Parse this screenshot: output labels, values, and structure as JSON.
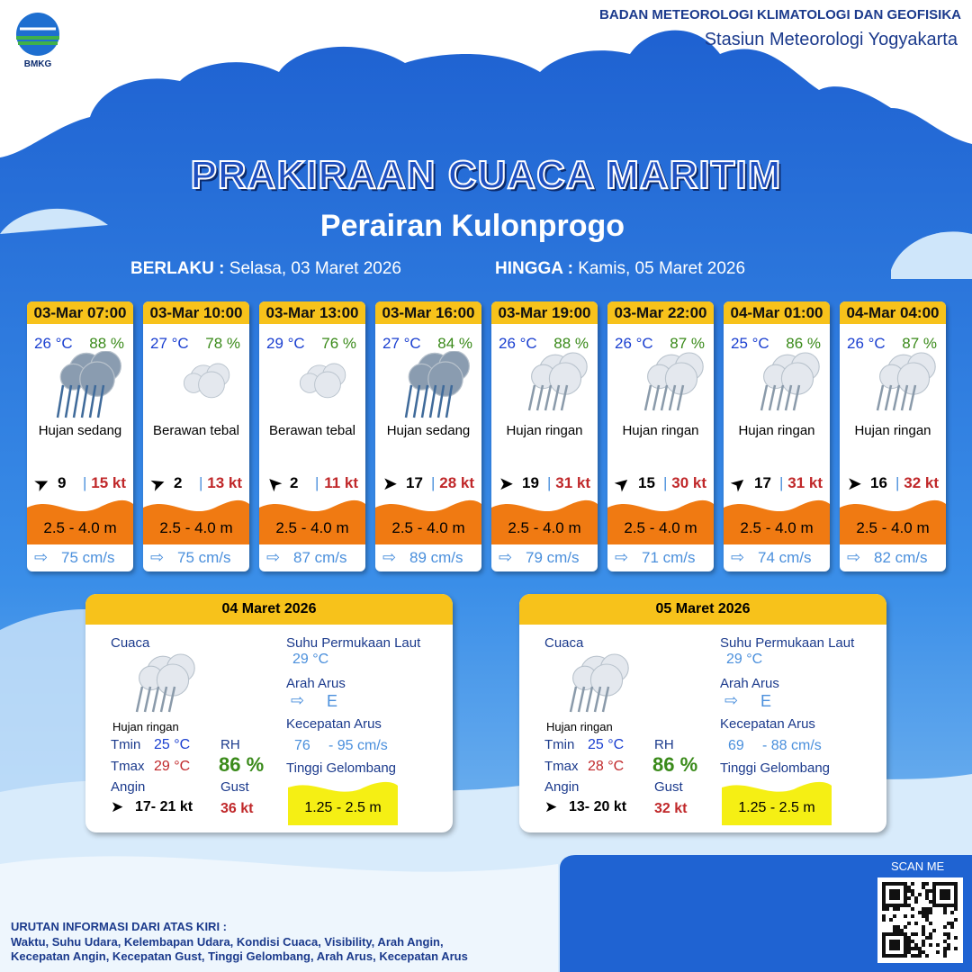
{
  "header": {
    "logo": "BMKG",
    "org": "BADAN METEOROLOGI KLIMATOLOGI DAN GEOFISIKA",
    "station": "Stasiun Meteorologi Yogyakarta"
  },
  "title": "PRAKIRAAN CUACA MARITIM",
  "subtitle": "Perairan Kulonprogo",
  "validity": {
    "from_label": "BERLAKU :",
    "from": "Selasa, 03 Maret 2026",
    "to_label": "HINGGA :",
    "to": "Kamis, 05 Maret 2026"
  },
  "forecasts": [
    {
      "time": "03-Mar 07:00",
      "temp": "26 °C",
      "rh": "88 %",
      "weather": "Hujan sedang",
      "wind": "9",
      "gust": "15 kt",
      "wave": "2.5 - 4.0 m",
      "current": "75 cm/s"
    },
    {
      "time": "03-Mar 10:00",
      "temp": "27 °C",
      "rh": "78 %",
      "weather": "Berawan tebal",
      "wind": "2",
      "gust": "13 kt",
      "wave": "2.5 - 4.0 m",
      "current": "75 cm/s"
    },
    {
      "time": "03-Mar 13:00",
      "temp": "29 °C",
      "rh": "76 %",
      "weather": "Berawan tebal",
      "wind": "2",
      "gust": "11 kt",
      "wave": "2.5 - 4.0 m",
      "current": "87 cm/s"
    },
    {
      "time": "03-Mar 16:00",
      "temp": "27 °C",
      "rh": "84 %",
      "weather": "Hujan sedang",
      "wind": "17",
      "gust": "28 kt",
      "wave": "2.5 - 4.0 m",
      "current": "89 cm/s"
    },
    {
      "time": "03-Mar 19:00",
      "temp": "26 °C",
      "rh": "88 %",
      "weather": "Hujan ringan",
      "wind": "19",
      "gust": "31 kt",
      "wave": "2.5 - 4.0 m",
      "current": "79 cm/s"
    },
    {
      "time": "03-Mar 22:00",
      "temp": "26 °C",
      "rh": "87 %",
      "weather": "Hujan ringan",
      "wind": "15",
      "gust": "30 kt",
      "wave": "2.5 - 4.0 m",
      "current": "71 cm/s"
    },
    {
      "time": "04-Mar 01:00",
      "temp": "25 °C",
      "rh": "86 %",
      "weather": "Hujan ringan",
      "wind": "17",
      "gust": "31 kt",
      "wave": "2.5 - 4.0 m",
      "current": "74 cm/s"
    },
    {
      "time": "04-Mar 04:00",
      "temp": "26 °C",
      "rh": "87 %",
      "weather": "Hujan ringan",
      "wind": "16",
      "gust": "32 kt",
      "wave": "2.5 - 4.0 m",
      "current": "82 cm/s"
    }
  ],
  "daily": [
    {
      "date": "04 Maret 2026",
      "weather_label": "Cuaca",
      "weather": "Hujan ringan",
      "tmin_label": "Tmin",
      "tmin": "25 °C",
      "tmax_label": "Tmax",
      "tmax": "29 °C",
      "wind_label": "Angin",
      "wind": "17- 21 kt",
      "rh_label": "RH",
      "rh": "86 %",
      "gust_label": "Gust",
      "gust": "36 kt",
      "sst_label": "Suhu Permukaan Laut",
      "sst": "29 °C",
      "dir_label": "Arah Arus",
      "dir": "E",
      "speed_label": "Kecepatan Arus",
      "speed_min": "76",
      "speed_max": "- 95 cm/s",
      "wave_label": "Tinggi Gelombang",
      "wave": "1.25 - 2.5 m"
    },
    {
      "date": "05 Maret 2026",
      "weather_label": "Cuaca",
      "weather": "Hujan ringan",
      "tmin_label": "Tmin",
      "tmin": "25 °C",
      "tmax_label": "Tmax",
      "tmax": "28 °C",
      "wind_label": "Angin",
      "wind": "13- 20 kt",
      "rh_label": "RH",
      "rh": "86 %",
      "gust_label": "Gust",
      "gust": "32 kt",
      "sst_label": "Suhu Permukaan Laut",
      "sst": "29 °C",
      "dir_label": "Arah Arus",
      "dir": "E",
      "speed_label": "Kecepatan Arus",
      "speed_min": "69",
      "speed_max": "- 88 cm/s",
      "wave_label": "Tinggi Gelombang",
      "wave": "1.25 - 2.5 m"
    }
  ],
  "footer": {
    "scan": "SCAN ME",
    "info_title": "URUTAN INFORMASI DARI ATAS KIRI :",
    "info_lines": [
      "Waktu, Suhu Udara, Kelembapan Udara, Kondisi Cuaca, Visibility, Arah Angin,",
      "Kecepatan Angin, Kecepatan Gust, Tinggi Gelombang, Arah Arus, Kecepatan Arus"
    ]
  }
}
